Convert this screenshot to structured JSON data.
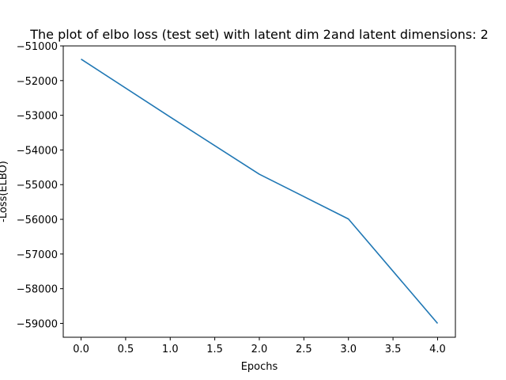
{
  "chart_data": {
    "type": "line",
    "title": "The plot of elbo loss (test set) with latent dim 2and latent dimensions: 2",
    "xlabel": "Epochs",
    "ylabel": "-Loss(ELBO)",
    "xlim": [
      -0.2,
      4.2
    ],
    "ylim": [
      -59400,
      -51000
    ],
    "xticks": [
      0.0,
      0.5,
      1.0,
      1.5,
      2.0,
      2.5,
      3.0,
      3.5,
      4.0
    ],
    "xtick_labels": [
      "0.0",
      "0.5",
      "1.0",
      "1.5",
      "2.0",
      "2.5",
      "3.0",
      "3.5",
      "4.0"
    ],
    "yticks": [
      -51000,
      -52000,
      -53000,
      -54000,
      -55000,
      -56000,
      -57000,
      -58000,
      -59000
    ],
    "ytick_labels": [
      "−51000",
      "−52000",
      "−53000",
      "−54000",
      "−55000",
      "−56000",
      "−57000",
      "−58000",
      "−59000"
    ],
    "grid": false,
    "series": [
      {
        "color": "#1f77b4",
        "x": [
          0,
          1,
          2,
          3,
          4
        ],
        "y": [
          -51380,
          -53050,
          -54700,
          -55990,
          -59000
        ]
      }
    ]
  }
}
